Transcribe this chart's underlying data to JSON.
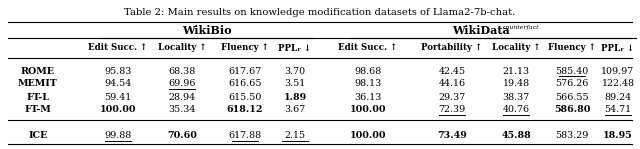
{
  "title": "Table 2: Main results on knowledge modification datasets of Llama2-7b-chat.",
  "wikibio_header": "WikiBio",
  "wikidata_header": "WikiData",
  "wikidata_superscript": "counterfact",
  "col_headers": [
    "Edit Succ. ↑",
    "Locality ↑",
    "Fluency ↑",
    "PPLᵣ ↓",
    "Edit Succ. ↑",
    "Portability ↑",
    "Locality ↑",
    "Fluency ↑",
    "PPLᵣ ↓"
  ],
  "row_labels": [
    "ROME",
    "MEMIT",
    "FT-L",
    "FT-M",
    "ICE"
  ],
  "row_bold": [
    true,
    true,
    true,
    true,
    true
  ],
  "data": [
    [
      "95.83",
      "68.38",
      "617.67",
      "3.70",
      "98.68",
      "42.45",
      "21.13",
      "585.40",
      "109.97"
    ],
    [
      "94.54",
      "69.96",
      "616.65",
      "3.51",
      "98.13",
      "44.16",
      "19.48",
      "576.26",
      "122.48"
    ],
    [
      "59.41",
      "28.94",
      "615.50",
      "1.89",
      "36.13",
      "29.37",
      "38.37",
      "566.55",
      "89.24"
    ],
    [
      "100.00",
      "35.34",
      "618.12",
      "3.67",
      "100.00",
      "72.39",
      "40.76",
      "586.80",
      "54.71"
    ],
    [
      "99.88",
      "70.60",
      "617.88",
      "2.15",
      "100.00",
      "73.49",
      "45.88",
      "583.29",
      "18.95"
    ]
  ],
  "bold": [
    [
      false,
      false,
      false,
      false,
      false,
      false,
      false,
      false,
      false
    ],
    [
      false,
      false,
      false,
      false,
      false,
      false,
      false,
      false,
      false
    ],
    [
      false,
      false,
      false,
      true,
      false,
      false,
      false,
      false,
      false
    ],
    [
      true,
      false,
      true,
      false,
      true,
      false,
      false,
      true,
      false
    ],
    [
      false,
      true,
      false,
      false,
      true,
      true,
      true,
      false,
      true
    ]
  ],
  "underline": [
    [
      false,
      false,
      false,
      false,
      false,
      false,
      false,
      true,
      false
    ],
    [
      false,
      true,
      false,
      false,
      false,
      false,
      false,
      false,
      false
    ],
    [
      false,
      false,
      false,
      false,
      false,
      false,
      false,
      false,
      false
    ],
    [
      false,
      false,
      false,
      false,
      false,
      true,
      true,
      false,
      true
    ],
    [
      true,
      false,
      true,
      true,
      false,
      false,
      false,
      false,
      false
    ]
  ]
}
